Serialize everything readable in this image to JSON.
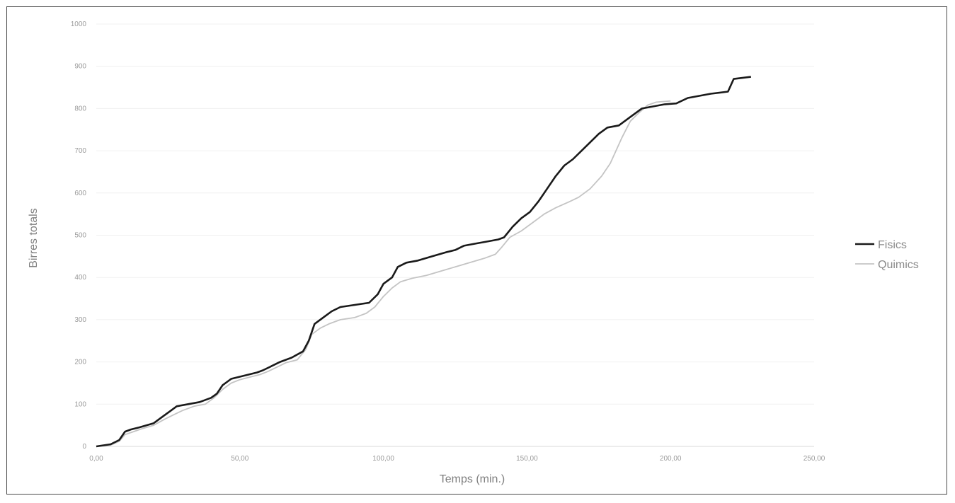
{
  "chart_data": {
    "type": "line",
    "title": "",
    "xlabel": "Temps (min.)",
    "ylabel": "Birres totals",
    "xlim": [
      0,
      250
    ],
    "ylim": [
      0,
      1000
    ],
    "x_ticks": [
      0,
      50,
      100,
      150,
      200,
      250
    ],
    "x_tick_labels": [
      "0,00",
      "50,00",
      "100,00",
      "150,00",
      "200,00",
      "250,00"
    ],
    "y_ticks": [
      0,
      100,
      200,
      300,
      400,
      500,
      600,
      700,
      800,
      900,
      1000
    ],
    "y_tick_labels": [
      "0",
      "100",
      "200",
      "300",
      "400",
      "500",
      "600",
      "700",
      "800",
      "900",
      "1000"
    ],
    "grid": "horizontal",
    "legend_position": "right",
    "series": [
      {
        "name": "Fisics",
        "color": "#1a1a1a",
        "points": [
          [
            0,
            0
          ],
          [
            5,
            5
          ],
          [
            8,
            15
          ],
          [
            10,
            35
          ],
          [
            12,
            40
          ],
          [
            15,
            45
          ],
          [
            20,
            55
          ],
          [
            23,
            70
          ],
          [
            26,
            85
          ],
          [
            28,
            95
          ],
          [
            32,
            100
          ],
          [
            36,
            105
          ],
          [
            40,
            115
          ],
          [
            42,
            125
          ],
          [
            44,
            145
          ],
          [
            47,
            160
          ],
          [
            50,
            165
          ],
          [
            53,
            170
          ],
          [
            56,
            175
          ],
          [
            58,
            180
          ],
          [
            61,
            190
          ],
          [
            64,
            200
          ],
          [
            68,
            210
          ],
          [
            72,
            225
          ],
          [
            74,
            250
          ],
          [
            76,
            290
          ],
          [
            78,
            300
          ],
          [
            80,
            310
          ],
          [
            82,
            320
          ],
          [
            85,
            330
          ],
          [
            90,
            335
          ],
          [
            95,
            340
          ],
          [
            98,
            360
          ],
          [
            100,
            385
          ],
          [
            103,
            400
          ],
          [
            105,
            425
          ],
          [
            108,
            435
          ],
          [
            112,
            440
          ],
          [
            117,
            450
          ],
          [
            122,
            460
          ],
          [
            125,
            465
          ],
          [
            128,
            475
          ],
          [
            132,
            480
          ],
          [
            136,
            485
          ],
          [
            140,
            490
          ],
          [
            142,
            495
          ],
          [
            145,
            520
          ],
          [
            148,
            540
          ],
          [
            151,
            555
          ],
          [
            154,
            580
          ],
          [
            157,
            610
          ],
          [
            160,
            640
          ],
          [
            163,
            665
          ],
          [
            166,
            680
          ],
          [
            169,
            700
          ],
          [
            172,
            720
          ],
          [
            175,
            740
          ],
          [
            178,
            755
          ],
          [
            182,
            760
          ],
          [
            186,
            780
          ],
          [
            190,
            800
          ],
          [
            194,
            805
          ],
          [
            198,
            810
          ],
          [
            202,
            812
          ],
          [
            206,
            825
          ],
          [
            210,
            830
          ],
          [
            214,
            835
          ],
          [
            220,
            840
          ],
          [
            222,
            870
          ],
          [
            228,
            875
          ]
        ]
      },
      {
        "name": "Quimics",
        "color": "#c4c4c4",
        "points": [
          [
            0,
            0
          ],
          [
            5,
            3
          ],
          [
            8,
            12
          ],
          [
            10,
            28
          ],
          [
            13,
            35
          ],
          [
            16,
            42
          ],
          [
            20,
            50
          ],
          [
            24,
            65
          ],
          [
            27,
            75
          ],
          [
            30,
            85
          ],
          [
            34,
            95
          ],
          [
            38,
            100
          ],
          [
            41,
            115
          ],
          [
            44,
            135
          ],
          [
            47,
            150
          ],
          [
            50,
            158
          ],
          [
            54,
            165
          ],
          [
            57,
            170
          ],
          [
            60,
            178
          ],
          [
            63,
            188
          ],
          [
            66,
            198
          ],
          [
            70,
            205
          ],
          [
            73,
            230
          ],
          [
            75,
            265
          ],
          [
            78,
            280
          ],
          [
            81,
            290
          ],
          [
            85,
            300
          ],
          [
            90,
            305
          ],
          [
            94,
            315
          ],
          [
            97,
            330
          ],
          [
            100,
            355
          ],
          [
            103,
            375
          ],
          [
            106,
            390
          ],
          [
            110,
            398
          ],
          [
            115,
            405
          ],
          [
            120,
            415
          ],
          [
            125,
            425
          ],
          [
            130,
            435
          ],
          [
            135,
            445
          ],
          [
            139,
            455
          ],
          [
            141,
            470
          ],
          [
            144,
            495
          ],
          [
            148,
            510
          ],
          [
            152,
            530
          ],
          [
            156,
            550
          ],
          [
            160,
            565
          ],
          [
            165,
            580
          ],
          [
            168,
            590
          ],
          [
            172,
            610
          ],
          [
            176,
            640
          ],
          [
            179,
            670
          ],
          [
            181,
            700
          ],
          [
            183,
            730
          ],
          [
            186,
            770
          ],
          [
            189,
            790
          ],
          [
            192,
            808
          ],
          [
            195,
            815
          ],
          [
            200,
            818
          ]
        ]
      }
    ]
  }
}
